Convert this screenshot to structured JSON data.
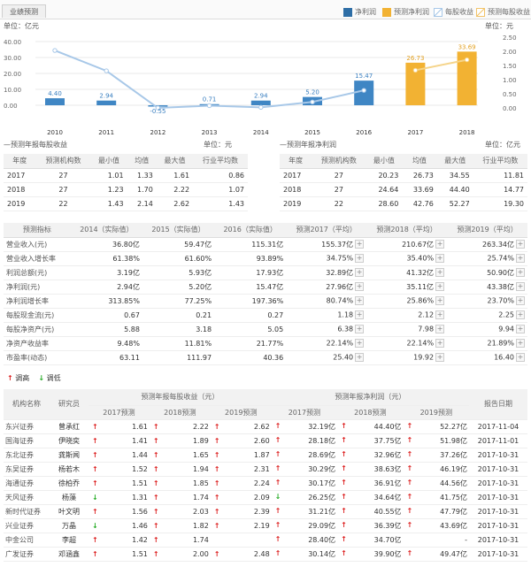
{
  "tab_label": "业绩预测",
  "legend": {
    "items": [
      {
        "label": "净利润",
        "color": "#2e6ea6",
        "kind": "bar"
      },
      {
        "label": "预测净利润",
        "color": "#f2b233",
        "kind": "bar"
      },
      {
        "label": "每股收益",
        "color": "#a8c8e8",
        "kind": "line"
      },
      {
        "label": "预测每股收益",
        "color": "#f2c46a",
        "kind": "line"
      }
    ]
  },
  "chart_data": {
    "type": "bar",
    "categories": [
      "2010",
      "2011",
      "2012",
      "2013",
      "2014",
      "2015",
      "2016",
      "2017",
      "2018"
    ],
    "series": [
      {
        "name": "净利润",
        "values": [
          4.4,
          2.94,
          -0.55,
          0.71,
          2.94,
          5.2,
          15.47,
          null,
          null
        ]
      },
      {
        "name": "预测净利润",
        "values": [
          null,
          null,
          null,
          null,
          null,
          null,
          null,
          26.73,
          33.69
        ]
      },
      {
        "name": "每股收益",
        "values": [
          2.03,
          1.31,
          0.0,
          0.08,
          0.02,
          0.21,
          0.62,
          null,
          null
        ]
      },
      {
        "name": "预测每股收益",
        "values": [
          null,
          null,
          null,
          null,
          null,
          null,
          null,
          1.33,
          1.7
        ]
      }
    ],
    "ylabel_left": "单位：亿元",
    "ylabel_right": "单位：元",
    "left_ticks": [
      "40.00",
      "30.00",
      "20.00",
      "10.00",
      "0.00"
    ],
    "right_ticks": [
      "2.50",
      "2.00",
      "1.50",
      "1.00",
      "0.50",
      "0.00"
    ],
    "ylim_left": [
      -10,
      43
    ],
    "ylim_right": [
      -0.5,
      2.65
    ]
  },
  "eps_table": {
    "title": "—预测年报每股收益",
    "unit": "单位：元",
    "headers": [
      "年度",
      "预测机构数",
      "最小值",
      "均值",
      "最大值",
      "行业平均数"
    ],
    "rows": [
      [
        "2017",
        "27",
        "1.01",
        "1.33",
        "1.61",
        "0.86"
      ],
      [
        "2018",
        "27",
        "1.23",
        "1.70",
        "2.22",
        "1.07"
      ],
      [
        "2019",
        "22",
        "1.43",
        "2.14",
        "2.62",
        "1.43"
      ]
    ]
  },
  "np_table": {
    "title": "—预测年报净利润",
    "unit": "单位：亿元",
    "headers": [
      "年度",
      "预测机构数",
      "最小值",
      "均值",
      "最大值",
      "行业平均数"
    ],
    "rows": [
      [
        "2017",
        "27",
        "20.23",
        "26.73",
        "34.55",
        "11.81"
      ],
      [
        "2018",
        "27",
        "24.64",
        "33.69",
        "44.40",
        "14.77"
      ],
      [
        "2019",
        "22",
        "28.60",
        "42.76",
        "52.27",
        "19.30"
      ]
    ]
  },
  "fin_table": {
    "headers": [
      "预测指标",
      "2014（实际值）",
      "2015（实际值）",
      "2016（实际值）",
      "预测2017（平均）",
      "预测2018（平均）",
      "预测2019（平均）"
    ],
    "rows": [
      [
        "营业收入(元)",
        "36.80亿",
        "59.47亿",
        "115.31亿",
        "155.37亿",
        "210.67亿",
        "263.34亿"
      ],
      [
        "营业收入增长率",
        "61.38%",
        "61.60%",
        "93.89%",
        "34.75%",
        "35.40%",
        "25.74%"
      ],
      [
        "利润总额(元)",
        "3.19亿",
        "5.93亿",
        "17.93亿",
        "32.89亿",
        "41.32亿",
        "50.90亿"
      ],
      [
        "净利润(元)",
        "2.94亿",
        "5.20亿",
        "15.47亿",
        "27.96亿",
        "35.11亿",
        "43.38亿"
      ],
      [
        "净利润增长率",
        "313.85%",
        "77.25%",
        "197.36%",
        "80.74%",
        "25.86%",
        "23.70%"
      ],
      [
        "每股现金流(元)",
        "0.67",
        "0.21",
        "0.27",
        "1.18",
        "2.12",
        "2.25"
      ],
      [
        "每股净资产(元)",
        "5.88",
        "3.18",
        "5.05",
        "6.38",
        "7.98",
        "9.94"
      ],
      [
        "净资产收益率",
        "9.48%",
        "11.81%",
        "21.77%",
        "22.14%",
        "22.14%",
        "21.89%"
      ],
      [
        "市盈率(动态)",
        "63.11",
        "111.97",
        "40.36",
        "25.40",
        "19.92",
        "16.40"
      ]
    ]
  },
  "trend_legend": {
    "up": "调高",
    "down": "调低"
  },
  "broker_table": {
    "h_inst": "机构名称",
    "h_analyst": "研究员",
    "h_eps": "预测年报每股收益（元）",
    "h_np": "预测年报净利润（元）",
    "h_date": "报告日期",
    "sub": [
      "2017预测",
      "2018预测",
      "2019预测",
      "2017预测",
      "2018预测",
      "2019预测"
    ],
    "rows": [
      {
        "inst": "东兴证券",
        "analyst": "曾承红",
        "e": [
          [
            "up",
            "1.61"
          ],
          [
            "up",
            "2.22"
          ],
          [
            "up",
            "2.62"
          ]
        ],
        "n": [
          [
            "up",
            "32.19亿"
          ],
          [
            "up",
            "44.40亿"
          ],
          [
            "up",
            "52.27亿"
          ]
        ],
        "date": "2017-11-04"
      },
      {
        "inst": "国海证券",
        "analyst": "伊晓奕",
        "e": [
          [
            "up",
            "1.41"
          ],
          [
            "up",
            "1.89"
          ],
          [
            "up",
            "2.60"
          ]
        ],
        "n": [
          [
            "up",
            "28.18亿"
          ],
          [
            "up",
            "37.75亿"
          ],
          [
            "up",
            "51.98亿"
          ]
        ],
        "date": "2017-11-01"
      },
      {
        "inst": "东北证券",
        "analyst": "龚斯闻",
        "e": [
          [
            "up",
            "1.44"
          ],
          [
            "up",
            "1.65"
          ],
          [
            "up",
            "1.87"
          ]
        ],
        "n": [
          [
            "up",
            "28.69亿"
          ],
          [
            "up",
            "32.96亿"
          ],
          [
            "up",
            "37.26亿"
          ]
        ],
        "date": "2017-10-31"
      },
      {
        "inst": "东吴证券",
        "analyst": "杨若木",
        "e": [
          [
            "up",
            "1.52"
          ],
          [
            "up",
            "1.94"
          ],
          [
            "up",
            "2.31"
          ]
        ],
        "n": [
          [
            "up",
            "30.29亿"
          ],
          [
            "up",
            "38.63亿"
          ],
          [
            "up",
            "46.19亿"
          ]
        ],
        "date": "2017-10-31"
      },
      {
        "inst": "海通证券",
        "analyst": "徐柏乔",
        "e": [
          [
            "up",
            "1.51"
          ],
          [
            "up",
            "1.85"
          ],
          [
            "up",
            "2.24"
          ]
        ],
        "n": [
          [
            "up",
            "30.17亿"
          ],
          [
            "up",
            "36.91亿"
          ],
          [
            "up",
            "44.56亿"
          ]
        ],
        "date": "2017-10-31"
      },
      {
        "inst": "天风证券",
        "analyst": "杨藻",
        "e": [
          [
            "down",
            "1.31"
          ],
          [
            "up",
            "1.74"
          ],
          [
            "up",
            "2.09"
          ]
        ],
        "n": [
          [
            "down",
            "26.25亿"
          ],
          [
            "up",
            "34.64亿"
          ],
          [
            "up",
            "41.75亿"
          ]
        ],
        "date": "2017-10-31"
      },
      {
        "inst": "新时代证券",
        "analyst": "叶文明",
        "e": [
          [
            "up",
            "1.56"
          ],
          [
            "up",
            "2.03"
          ],
          [
            "up",
            "2.39"
          ]
        ],
        "n": [
          [
            "up",
            "31.21亿"
          ],
          [
            "up",
            "40.55亿"
          ],
          [
            "up",
            "47.79亿"
          ]
        ],
        "date": "2017-10-31"
      },
      {
        "inst": "兴业证券",
        "analyst": "万晶",
        "e": [
          [
            "down",
            "1.46"
          ],
          [
            "up",
            "1.82"
          ],
          [
            "up",
            "2.19"
          ]
        ],
        "n": [
          [
            "up",
            "29.09亿"
          ],
          [
            "up",
            "36.39亿"
          ],
          [
            "up",
            "43.69亿"
          ]
        ],
        "date": "2017-10-31"
      },
      {
        "inst": "中金公司",
        "analyst": "李超",
        "e": [
          [
            "up",
            "1.42"
          ],
          [
            "up",
            "1.74"
          ],
          [
            "",
            ""
          ]
        ],
        "n": [
          [
            "up",
            "28.40亿"
          ],
          [
            "up",
            "34.70亿"
          ],
          [
            "",
            "-"
          ]
        ],
        "date": "2017-10-31"
      },
      {
        "inst": "广发证券",
        "analyst": "邓涵鑫",
        "e": [
          [
            "up",
            "1.51"
          ],
          [
            "up",
            "2.00"
          ],
          [
            "up",
            "2.48"
          ]
        ],
        "n": [
          [
            "up",
            "30.14亿"
          ],
          [
            "up",
            "39.90亿"
          ],
          [
            "up",
            "49.47亿"
          ]
        ],
        "date": "2017-10-31"
      }
    ]
  }
}
